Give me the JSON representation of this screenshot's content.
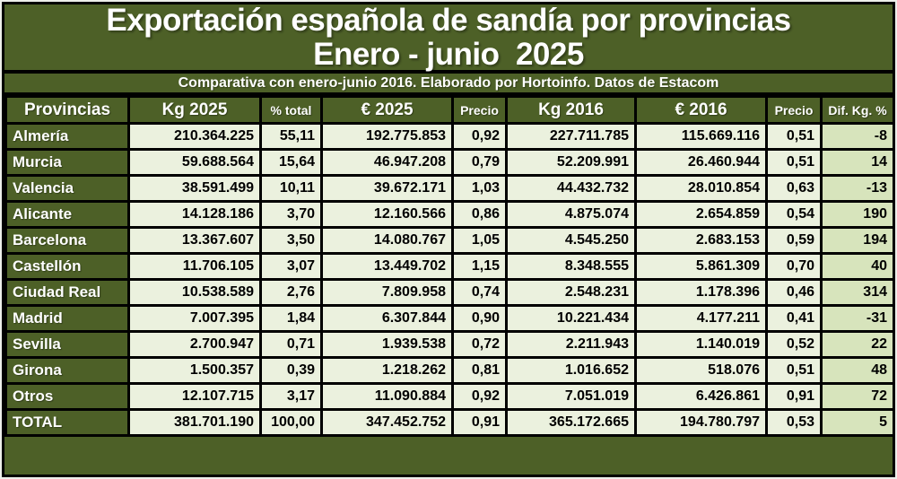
{
  "header": {
    "title_line1": "Exportación española de sandía por provincias",
    "title_line2": "Enero - junio  2025",
    "subtitle": "Comparativa con enero-junio 2016. Elaborado por Hortoinfo. Datos de Estacom"
  },
  "colors": {
    "dark_olive_background": "#4D6027",
    "light_cell_background": "#EBF1DE",
    "diff_column_background": "#D7E4BC",
    "grid_border": "#000000",
    "header_text": "#FFFFFF",
    "data_text": "#000000"
  },
  "chart_data": {
    "type": "table",
    "title": "Exportación española de sandía por provincias Enero - junio 2025",
    "subtitle": "Comparativa con enero-junio 2016. Elaborado por Hortoinfo. Datos de Estacom",
    "columns": [
      "Provincias",
      "Kg 2025",
      "% total",
      "€ 2025",
      "Precio",
      "Kg 2016",
      "€ 2016",
      "Precio",
      "Dif. Kg. %"
    ],
    "rows": [
      [
        "Almería",
        "210.364.225",
        "55,11",
        "192.775.853",
        "0,92",
        "227.711.785",
        "115.669.116",
        "0,51",
        "-8"
      ],
      [
        "Murcia",
        "59.688.564",
        "15,64",
        "46.947.208",
        "0,79",
        "52.209.991",
        "26.460.944",
        "0,51",
        "14"
      ],
      [
        "Valencia",
        "38.591.499",
        "10,11",
        "39.672.171",
        "1,03",
        "44.432.732",
        "28.010.854",
        "0,63",
        "-13"
      ],
      [
        "Alicante",
        "14.128.186",
        "3,70",
        "12.160.566",
        "0,86",
        "4.875.074",
        "2.654.859",
        "0,54",
        "190"
      ],
      [
        "Barcelona",
        "13.367.607",
        "3,50",
        "14.080.767",
        "1,05",
        "4.545.250",
        "2.683.153",
        "0,59",
        "194"
      ],
      [
        "Castellón",
        "11.706.105",
        "3,07",
        "13.449.702",
        "1,15",
        "8.348.555",
        "5.861.309",
        "0,70",
        "40"
      ],
      [
        "Ciudad Real",
        "10.538.589",
        "2,76",
        "7.809.958",
        "0,74",
        "2.548.231",
        "1.178.396",
        "0,46",
        "314"
      ],
      [
        "Madrid",
        "7.007.395",
        "1,84",
        "6.307.844",
        "0,90",
        "10.221.434",
        "4.177.211",
        "0,41",
        "-31"
      ],
      [
        "Sevilla",
        "2.700.947",
        "0,71",
        "1.939.538",
        "0,72",
        "2.211.943",
        "1.140.019",
        "0,52",
        "22"
      ],
      [
        "Girona",
        "1.500.357",
        "0,39",
        "1.218.262",
        "0,81",
        "1.016.652",
        "518.076",
        "0,51",
        "48"
      ],
      [
        "Otros",
        "12.107.715",
        "3,17",
        "11.090.884",
        "0,92",
        "7.051.019",
        "6.426.861",
        "0,91",
        "72"
      ],
      [
        "TOTAL",
        "381.701.190",
        "100,00",
        "347.452.752",
        "0,91",
        "365.172.665",
        "194.780.797",
        "0,53",
        "5"
      ]
    ]
  }
}
